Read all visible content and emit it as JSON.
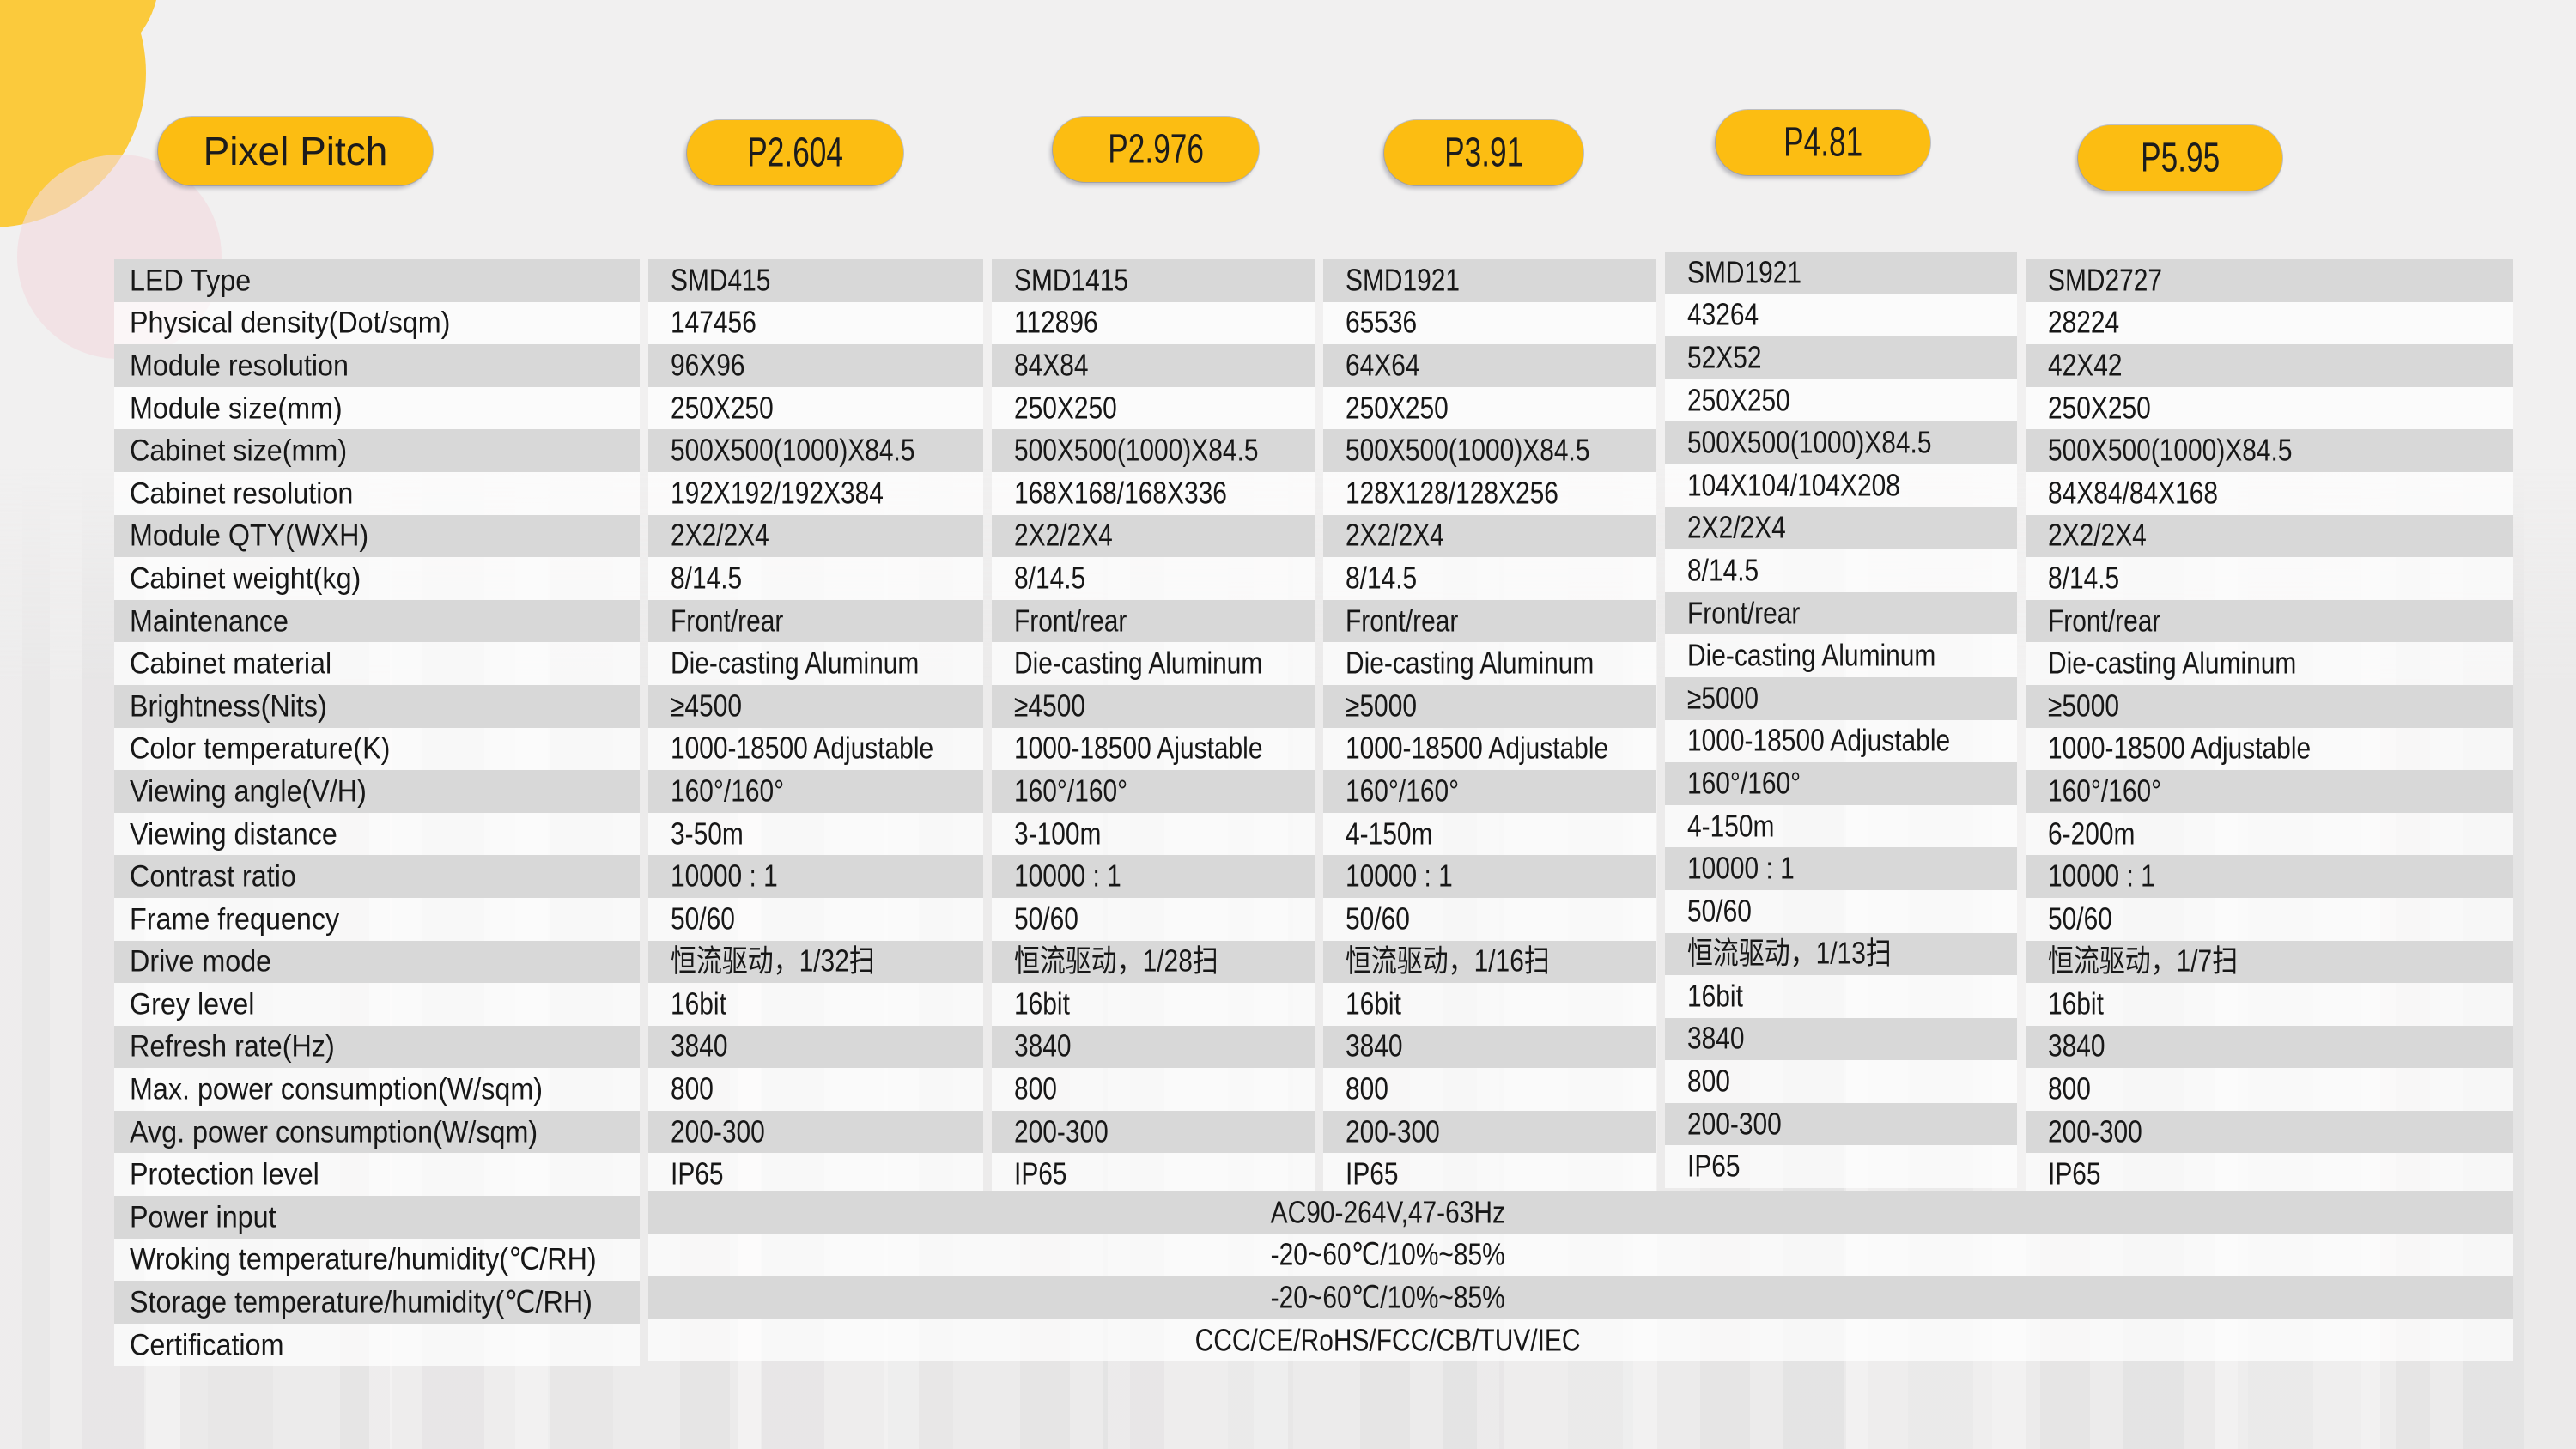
{
  "colors": {
    "accent_pill": "#fcbd12",
    "stripe_gray": "#d8d8d8",
    "page_background": "#f1f0f0",
    "decor_yellow": "#fbca3c",
    "decor_pink": "#f2dadf"
  },
  "header": {
    "pitch_label": "Pixel Pitch",
    "columns": [
      "P2.604",
      "P2.976",
      "P3.91",
      "P4.81",
      "P5.95"
    ]
  },
  "table": {
    "rows": [
      {
        "label": "LED Type",
        "values": [
          "SMD415",
          "SMD1415",
          "SMD1921",
          "SMD1921",
          "SMD2727"
        ]
      },
      {
        "label": "Physical density(Dot/sqm)",
        "values": [
          "147456",
          "112896",
          "65536",
          "43264",
          "28224"
        ]
      },
      {
        "label": "Module resolution",
        "values": [
          "96X96",
          "84X84",
          "64X64",
          "52X52",
          "42X42"
        ]
      },
      {
        "label": "Module size(mm)",
        "values": [
          "250X250",
          "250X250",
          "250X250",
          "250X250",
          "250X250"
        ]
      },
      {
        "label": "Cabinet size(mm)",
        "values": [
          "500X500(1000)X84.5",
          "500X500(1000)X84.5",
          "500X500(1000)X84.5",
          "500X500(1000)X84.5",
          "500X500(1000)X84.5"
        ]
      },
      {
        "label": "Cabinet resolution",
        "values": [
          "192X192/192X384",
          "168X168/168X336",
          "128X128/128X256",
          "104X104/104X208",
          "84X84/84X168"
        ]
      },
      {
        "label": "Module QTY(WXH)",
        "values": [
          "2X2/2X4",
          "2X2/2X4",
          "2X2/2X4",
          "2X2/2X4",
          "2X2/2X4"
        ]
      },
      {
        "label": "Cabinet weight(kg)",
        "values": [
          "8/14.5",
          "8/14.5",
          "8/14.5",
          "8/14.5",
          "8/14.5"
        ]
      },
      {
        "label": "Maintenance",
        "values": [
          "Front/rear",
          "Front/rear",
          "Front/rear",
          "Front/rear",
          "Front/rear"
        ]
      },
      {
        "label": "Cabinet material",
        "values": [
          "Die-casting Aluminum",
          "Die-casting Aluminum",
          "Die-casting Aluminum",
          "Die-casting Aluminum",
          "Die-casting Aluminum"
        ]
      },
      {
        "label": "Brightness(Nits)",
        "values": [
          "≥4500",
          "≥4500",
          "≥5000",
          "≥5000",
          "≥5000"
        ]
      },
      {
        "label": "Color temperature(K)",
        "values": [
          "1000-18500 Adjustable",
          "1000-18500 Ajustable",
          "1000-18500 Adjustable",
          "1000-18500 Adjustable",
          "1000-18500 Adjustable"
        ]
      },
      {
        "label": "Viewing angle(V/H)",
        "values": [
          "160°/160°",
          "160°/160°",
          "160°/160°",
          "160°/160°",
          "160°/160°"
        ]
      },
      {
        "label": "Viewing distance",
        "values": [
          "3-50m",
          "3-100m",
          "4-150m",
          "4-150m",
          "6-200m"
        ]
      },
      {
        "label": "Contrast ratio",
        "values": [
          "10000 : 1",
          "10000 : 1",
          "10000 : 1",
          "10000 : 1",
          "10000 : 1"
        ]
      },
      {
        "label": "Frame frequency",
        "values": [
          "50/60",
          "50/60",
          "50/60",
          "50/60",
          "50/60"
        ]
      },
      {
        "label": "Drive mode",
        "values": [
          "恒流驱动，1/32扫",
          "恒流驱动，1/28扫",
          "恒流驱动，1/16扫",
          "恒流驱动，1/13扫",
          "恒流驱动，1/7扫"
        ]
      },
      {
        "label": "Grey level",
        "values": [
          "16bit",
          "16bit",
          "16bit",
          "16bit",
          "16bit"
        ]
      },
      {
        "label": "Refresh rate(Hz)",
        "values": [
          "3840",
          "3840",
          "3840",
          "3840",
          "3840"
        ]
      },
      {
        "label": "Max. power consumption(W/sqm)",
        "values": [
          "800",
          "800",
          "800",
          "800",
          "800"
        ]
      },
      {
        "label": "Avg. power consumption(W/sqm)",
        "values": [
          "200-300",
          "200-300",
          "200-300",
          "200-300",
          "200-300"
        ]
      },
      {
        "label": "Protection level",
        "values": [
          "IP65",
          "IP65",
          "IP65",
          "IP65",
          "IP65"
        ]
      }
    ],
    "merged_rows": [
      {
        "label": "Power input",
        "value": "AC90-264V,47-63Hz"
      },
      {
        "label": "Wroking temperature/humidity(℃/RH)",
        "value": "-20~60℃/10%~85%"
      },
      {
        "label": "Storage  temperature/humidity(℃/RH)",
        "value": "-20~60℃/10%~85%"
      },
      {
        "label": "Certificatiom",
        "value": "CCC/CE/RoHS/FCC/CB/TUV/IEC"
      }
    ]
  }
}
